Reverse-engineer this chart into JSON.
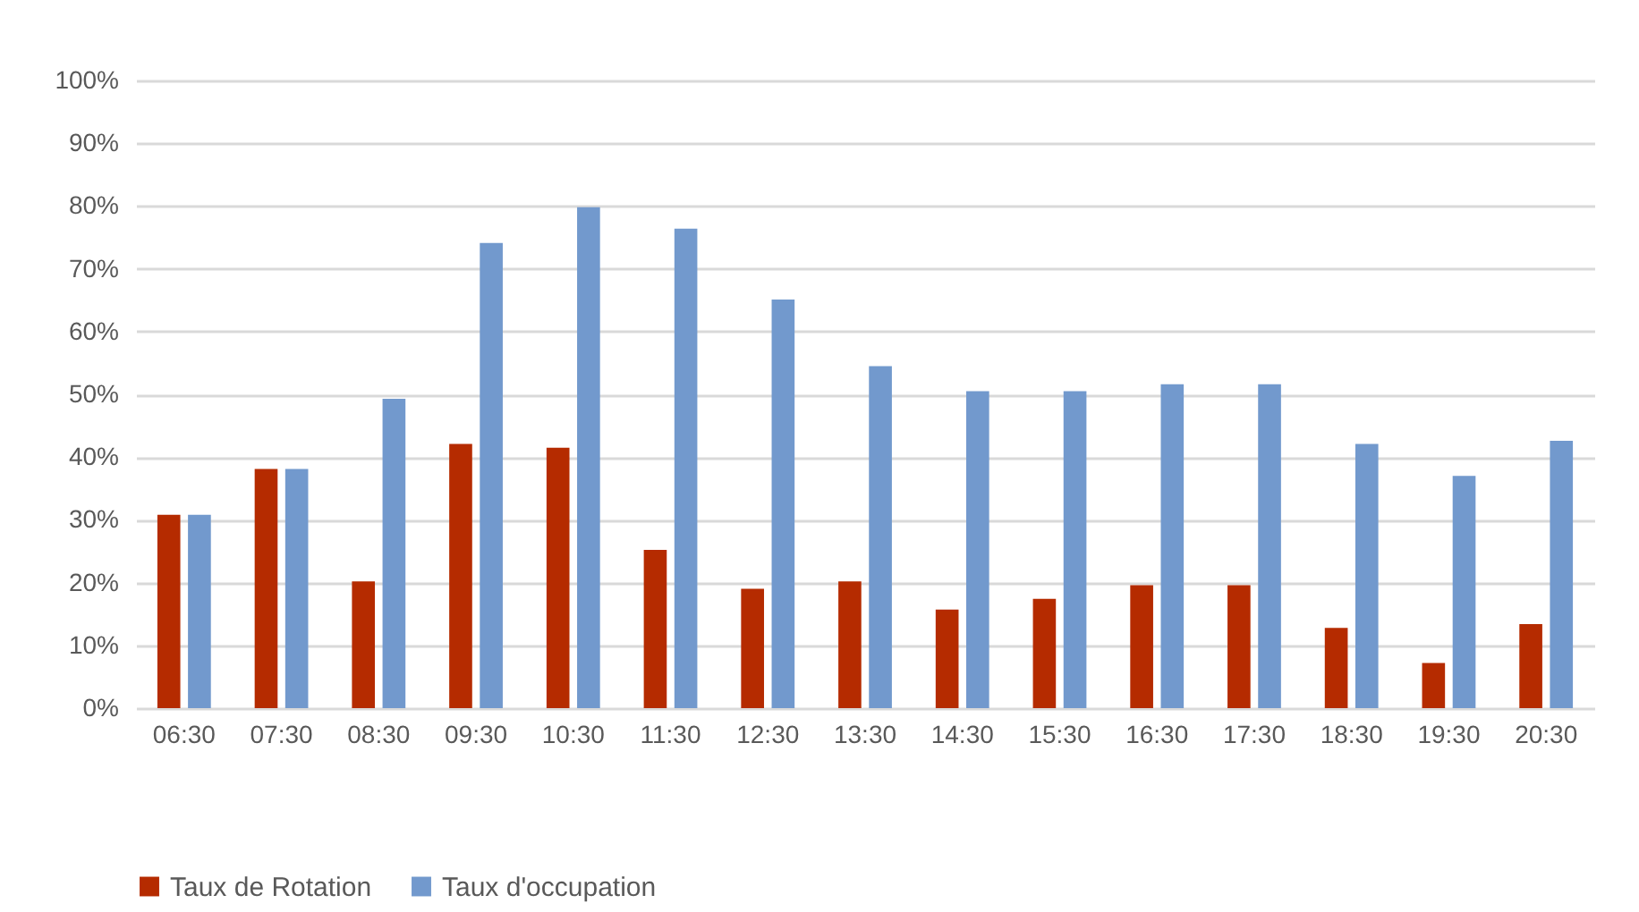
{
  "chart_data": {
    "type": "bar",
    "categories": [
      "06:30",
      "07:30",
      "08:30",
      "09:30",
      "10:30",
      "11:30",
      "12:30",
      "13:30",
      "14:30",
      "15:30",
      "16:30",
      "17:30",
      "18:30",
      "19:30",
      "20:30"
    ],
    "series": [
      {
        "name": "Taux de Rotation",
        "color": "#b52b00",
        "values": [
          30.8,
          38.1,
          20.2,
          42.1,
          41.5,
          25.2,
          19.0,
          20.2,
          15.7,
          17.4,
          19.6,
          19.6,
          12.8,
          7.2,
          13.4
        ]
      },
      {
        "name": "Taux d'occupation",
        "color": "#7299cd",
        "values": [
          30.8,
          38.1,
          49.3,
          74.1,
          79.8,
          76.4,
          65.1,
          54.5,
          50.5,
          50.5,
          51.6,
          51.6,
          42.1,
          37.0,
          42.6
        ]
      }
    ],
    "ylim": [
      0,
      100
    ],
    "yticks": [
      {
        "value": 0,
        "label": "0%"
      },
      {
        "value": 10,
        "label": "10%"
      },
      {
        "value": 20,
        "label": "20%"
      },
      {
        "value": 30,
        "label": "30%"
      },
      {
        "value": 40,
        "label": "40%"
      },
      {
        "value": 50,
        "label": "50%"
      },
      {
        "value": 60,
        "label": "60%"
      },
      {
        "value": 70,
        "label": "70%"
      },
      {
        "value": 80,
        "label": "80%"
      },
      {
        "value": 90,
        "label": "90%"
      },
      {
        "value": 100,
        "label": "100%"
      }
    ],
    "grid": "y",
    "legend": "bottom"
  }
}
